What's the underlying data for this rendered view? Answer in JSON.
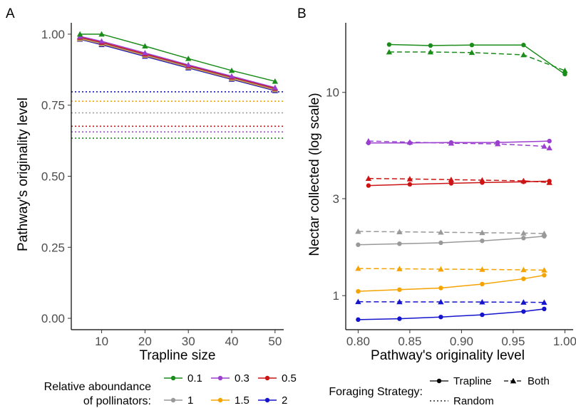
{
  "chart_data": [
    {
      "type": "line",
      "panel_label": "A",
      "xlabel": "Trapline size",
      "ylabel": "Pathway's originality level",
      "xlim": [
        3,
        52
      ],
      "ylim": [
        -0.04,
        1.04
      ],
      "x_ticks": [
        "10",
        "20",
        "30",
        "40",
        "50"
      ],
      "y_ticks": [
        "0.00",
        "0.25",
        "0.50",
        "0.75",
        "1.00"
      ],
      "x": [
        5,
        10,
        20,
        30,
        40,
        50
      ],
      "series": [
        {
          "name": "0.1",
          "color": "#1a8c1a",
          "strategy": "Both",
          "values": [
            1.0,
            1.0,
            0.958,
            0.914,
            0.872,
            0.834
          ]
        },
        {
          "name": "0.3",
          "color": "#9b3fce",
          "strategy": "Both",
          "values": [
            0.992,
            0.975,
            0.934,
            0.892,
            0.852,
            0.812
          ]
        },
        {
          "name": "0.5",
          "color": "#cc1414",
          "strategy": "Both",
          "values": [
            0.989,
            0.971,
            0.93,
            0.889,
            0.849,
            0.809
          ]
        },
        {
          "name": "1",
          "color": "#999999",
          "strategy": "Both",
          "values": [
            0.986,
            0.968,
            0.927,
            0.886,
            0.846,
            0.806
          ]
        },
        {
          "name": "1.5",
          "color": "#f5a300",
          "strategy": "Both",
          "values": [
            0.984,
            0.966,
            0.925,
            0.884,
            0.844,
            0.804
          ]
        },
        {
          "name": "2",
          "color": "#1414cc",
          "strategy": "Both",
          "values": [
            0.982,
            0.963,
            0.922,
            0.881,
            0.841,
            0.801
          ]
        }
      ],
      "random_levels": [
        {
          "name": "2",
          "color": "#1414cc",
          "value": 0.797
        },
        {
          "name": "1.5",
          "color": "#f5a300",
          "value": 0.764
        },
        {
          "name": "1",
          "color": "#999999",
          "value": 0.723
        },
        {
          "name": "0.5",
          "color": "#cc1414",
          "value": 0.676
        },
        {
          "name": "0.3",
          "color": "#9b3fce",
          "value": 0.656
        },
        {
          "name": "0.1",
          "color": "#1a8c1a",
          "value": 0.634
        }
      ]
    },
    {
      "type": "line",
      "panel_label": "B",
      "xlabel": "Pathway's originality level",
      "ylabel": "Nectar collected (log scale)",
      "log_y": true,
      "xlim": [
        0.788,
        1.008
      ],
      "ylim": [
        0.68,
        22
      ],
      "x_ticks": [
        "0.80",
        "0.85",
        "0.90",
        "0.95",
        "1.00"
      ],
      "x_tick_values": [
        0.8,
        0.85,
        0.9,
        0.95,
        1.0
      ],
      "y_ticks": [
        "1",
        "3",
        "10"
      ],
      "y_tick_values": [
        1,
        3,
        10
      ],
      "series": [
        {
          "name": "0.1",
          "color": "#1a8c1a",
          "strategy": "Trapline",
          "x": [
            0.83,
            0.87,
            0.91,
            0.96,
            1.0
          ],
          "values": [
            17.2,
            17.0,
            17.1,
            17.1,
            12.3
          ]
        },
        {
          "name": "0.1",
          "color": "#1a8c1a",
          "strategy": "Both",
          "x": [
            0.83,
            0.87,
            0.91,
            0.96,
            1.0
          ],
          "values": [
            15.8,
            15.8,
            15.7,
            15.3,
            12.8
          ]
        },
        {
          "name": "0.3",
          "color": "#9b3fce",
          "strategy": "Trapline",
          "x": [
            0.81,
            0.85,
            0.89,
            0.935,
            0.985
          ],
          "values": [
            5.64,
            5.64,
            5.67,
            5.67,
            5.76
          ]
        },
        {
          "name": "0.3",
          "color": "#9b3fce",
          "strategy": "Both",
          "x": [
            0.81,
            0.85,
            0.89,
            0.935,
            0.98,
            0.985
          ],
          "values": [
            5.76,
            5.69,
            5.62,
            5.58,
            5.43,
            5.33
          ]
        },
        {
          "name": "0.5",
          "color": "#cc1414",
          "strategy": "Trapline",
          "x": [
            0.81,
            0.85,
            0.89,
            0.92,
            0.96,
            0.985
          ],
          "values": [
            3.48,
            3.53,
            3.57,
            3.6,
            3.63,
            3.66
          ]
        },
        {
          "name": "0.5",
          "color": "#cc1414",
          "strategy": "Both",
          "x": [
            0.81,
            0.85,
            0.89,
            0.92,
            0.96,
            0.985
          ],
          "values": [
            3.77,
            3.75,
            3.72,
            3.7,
            3.67,
            3.6
          ]
        },
        {
          "name": "1",
          "color": "#999999",
          "strategy": "Trapline",
          "x": [
            0.8,
            0.84,
            0.88,
            0.92,
            0.96,
            0.98
          ],
          "values": [
            1.78,
            1.8,
            1.82,
            1.86,
            1.92,
            1.96
          ]
        },
        {
          "name": "1",
          "color": "#999999",
          "strategy": "Both",
          "x": [
            0.8,
            0.84,
            0.88,
            0.92,
            0.96,
            0.98
          ],
          "values": [
            2.07,
            2.06,
            2.05,
            2.04,
            2.03,
            2.02
          ]
        },
        {
          "name": "1.5",
          "color": "#f5a300",
          "strategy": "Trapline",
          "x": [
            0.8,
            0.84,
            0.88,
            0.92,
            0.96,
            0.98
          ],
          "values": [
            1.05,
            1.07,
            1.09,
            1.14,
            1.21,
            1.26
          ]
        },
        {
          "name": "1.5",
          "color": "#f5a300",
          "strategy": "Both",
          "x": [
            0.8,
            0.84,
            0.88,
            0.92,
            0.96,
            0.98
          ],
          "values": [
            1.36,
            1.355,
            1.35,
            1.345,
            1.34,
            1.335
          ]
        },
        {
          "name": "2",
          "color": "#1414cc",
          "strategy": "Trapline",
          "x": [
            0.8,
            0.84,
            0.88,
            0.92,
            0.96,
            0.98
          ],
          "values": [
            0.762,
            0.77,
            0.785,
            0.805,
            0.835,
            0.86
          ]
        },
        {
          "name": "2",
          "color": "#1414cc",
          "strategy": "Both",
          "x": [
            0.8,
            0.84,
            0.88,
            0.92,
            0.96,
            0.98
          ],
          "values": [
            0.933,
            0.932,
            0.931,
            0.93,
            0.928,
            0.926
          ]
        }
      ]
    }
  ],
  "legend": {
    "abundance_title_line1": "Relative aboundance",
    "abundance_title_line2": "of pollinators:",
    "abundance_items": [
      {
        "label": "0.1",
        "color": "#1a8c1a"
      },
      {
        "label": "0.3",
        "color": "#9b3fce"
      },
      {
        "label": "0.5",
        "color": "#cc1414"
      },
      {
        "label": "1",
        "color": "#999999"
      },
      {
        "label": "1.5",
        "color": "#f5a300"
      },
      {
        "label": "2",
        "color": "#1414cc"
      }
    ],
    "strategy_title": "Foraging Strategy:",
    "strategy_items": [
      {
        "label": "Trapline",
        "style": "solid-circle"
      },
      {
        "label": "Both",
        "style": "dashed-triangle"
      },
      {
        "label": "Random",
        "style": "dotted"
      }
    ]
  }
}
